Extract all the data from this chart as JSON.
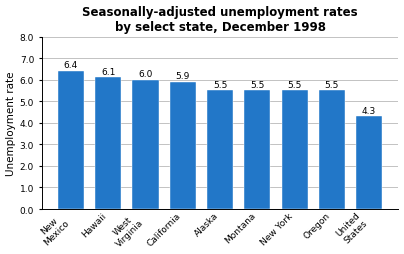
{
  "categories": [
    "New\nMexico",
    "Hawaii",
    "West\nVirginia",
    "California",
    "Alaska",
    "Montana",
    "New York",
    "Oregon",
    "United\nStates"
  ],
  "values": [
    6.4,
    6.1,
    6.0,
    5.9,
    5.5,
    5.5,
    5.5,
    5.5,
    4.3
  ],
  "bar_color": "#2277c8",
  "title_line1": "Seasonally-adjusted unemployment rates",
  "title_line2": "by select state, December 1998",
  "ylabel": "Unemployment rate",
  "ylim": [
    0.0,
    8.0
  ],
  "yticks": [
    0.0,
    1.0,
    2.0,
    3.0,
    4.0,
    5.0,
    6.0,
    7.0,
    8.0
  ],
  "title_fontsize": 8.5,
  "ylabel_fontsize": 7.5,
  "tick_fontsize": 6.5,
  "bar_label_fontsize": 6.5,
  "xlabel_rotation": 45
}
